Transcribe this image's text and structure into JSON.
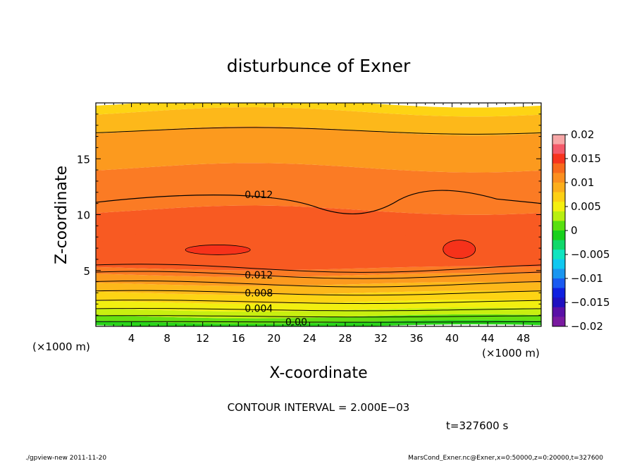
{
  "chart_data": {
    "type": "heatmap",
    "title": "disturbunce of Exner",
    "xlabel": "X-coordinate",
    "ylabel": "Z-coordinate",
    "x_unit_left": "(×1000 m)",
    "x_unit_right": "(×1000 m)",
    "xlim": [
      0,
      50
    ],
    "ylim": [
      0,
      20
    ],
    "x_ticks": [
      4,
      8,
      12,
      16,
      20,
      24,
      28,
      32,
      36,
      40,
      44,
      48
    ],
    "y_ticks": [
      5,
      10,
      15
    ],
    "colorbar": {
      "range": [
        -0.02,
        0.02
      ],
      "ticks": [
        "0.02",
        "0.015",
        "0.01",
        "0.005",
        "0",
        "−0.005",
        "−0.01",
        "−0.015",
        "−0.02"
      ],
      "tick_values": [
        0.02,
        0.015,
        0.01,
        0.005,
        0,
        -0.005,
        -0.01,
        -0.015,
        -0.02
      ]
    },
    "contour_labels": [
      {
        "text": "0.012",
        "x": 18.3,
        "z": 11.8
      },
      {
        "text": "0.012",
        "x": 18.3,
        "z": 4.6
      },
      {
        "text": "0.008",
        "x": 18.3,
        "z": 3.0
      },
      {
        "text": "0.004",
        "x": 18.3,
        "z": 1.6
      },
      {
        "text": "0.00",
        "x": 22.5,
        "z": 0.4
      }
    ],
    "contour_interval_text": "CONTOUR INTERVAL = 2.000E−03",
    "time_text": "t=327600 s"
  },
  "footer": {
    "left": "./gpview-new  2011-11-20",
    "right": "MarsCond_Exner.nc@Exner,x=0:50000,z=0:20000,t=327600"
  },
  "colors": {
    "max_core": "#f6321a",
    "deep_red_orange": "#f85a22",
    "orange_red": "#fb7b24",
    "orange": "#fc9a1e",
    "light_orange": "#fdb81a",
    "yellow_orange": "#fdd414",
    "yellow": "#f2ef10",
    "yellow_green": "#c8ef10",
    "green": "#66e010",
    "bright_green": "#2ad41a"
  }
}
